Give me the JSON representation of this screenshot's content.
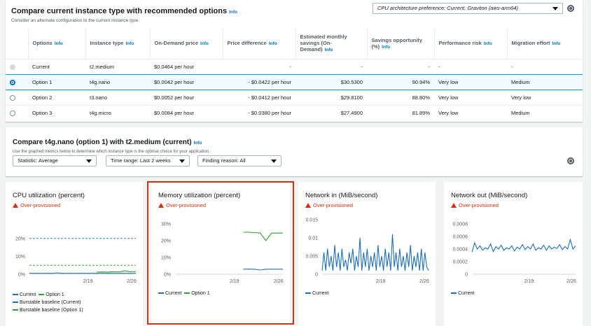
{
  "recommend": {
    "title": "Compare current instance type with recommended options",
    "title_info": "Info",
    "subtitle": "Consider an alternate configuration to the current instance type.",
    "cpu_pref": "CPU architecture preference: Current, Graviton (aws-arm64)",
    "columns": [
      {
        "label": "Options",
        "info": "Info"
      },
      {
        "label": "Instance type",
        "info": "Info"
      },
      {
        "label": "On-Demand price",
        "info": "Info"
      },
      {
        "label": "Price difference",
        "info": "Info"
      },
      {
        "label": "Estimated monthly savings (On-Demand)",
        "info": "Info"
      },
      {
        "label": "Savings opportunity (%)",
        "info": "Info"
      },
      {
        "label": "Performance risk",
        "info": "Info"
      },
      {
        "label": "Migration effort",
        "info": "Info"
      }
    ],
    "rows": [
      {
        "option": "Current",
        "type": "t2.medium",
        "price": "$0.0464 per hour",
        "diff": "-",
        "savings": "-",
        "pct": "-",
        "risk": "-",
        "effort": "-"
      },
      {
        "option": "Option 1",
        "type": "t4g.nano",
        "price": "$0.0042 per hour",
        "diff": "- $0.0422 per hour",
        "savings": "$30.5300",
        "pct": "90.94%",
        "risk": "Very low",
        "effort": "Medium"
      },
      {
        "option": "Option 2",
        "type": "t3.nano",
        "price": "$0.0052 per hour",
        "diff": "- $0.0412 per hour",
        "savings": "$29.8100",
        "pct": "88.80%",
        "risk": "Very low",
        "effort": "Very low"
      },
      {
        "option": "Option 3",
        "type": "t4g.micro",
        "price": "$0.0084 per hour",
        "diff": "- $0.0380 per hour",
        "savings": "$27.4900",
        "pct": "81.89%",
        "risk": "Very low",
        "effort": "Medium"
      }
    ]
  },
  "compare": {
    "title": "Compare t4g.nano (option 1) with t2.medium (current)",
    "title_info": "Info",
    "subtitle": "Use the graphed metrics below to determine which instance type is the optimal choice for your application.",
    "statistic": "Statistic: Average",
    "time_range": "Time range: Last 2 weeks",
    "finding": "Finding reason: All"
  },
  "colors": {
    "current": "#1f6fb5",
    "option1": "#2ca02c",
    "warn": "#d13212"
  },
  "chart_data": [
    {
      "type": "line",
      "title": "CPU utilization (percent)",
      "status": "Over-provisioned",
      "x_ticks": [
        "2/19",
        "2/26"
      ],
      "y_ticks": [
        "0%",
        "10%",
        "20%"
      ],
      "ylim": [
        0,
        25
      ],
      "series": [
        {
          "name": "Current",
          "values": [
            0.5,
            0.6,
            0.5,
            0.6,
            0.5,
            0.7,
            0.5,
            0.6,
            0.5,
            0.6,
            0.5,
            0.6,
            0.5,
            0.6,
            0.5,
            0.6,
            0.5,
            0.6,
            0.5,
            0.6
          ]
        },
        {
          "name": "Option 1",
          "values": [
            null,
            null,
            null,
            null,
            null,
            null,
            null,
            null,
            null,
            null,
            null,
            null,
            1.2,
            1.3,
            1.2,
            1.4,
            1.3,
            1.9,
            1.4,
            1.5
          ]
        }
      ],
      "baselines": [
        {
          "name": "Burstable baseline (Current)",
          "value": 20
        },
        {
          "name": "Burstable baseline (Option 1)",
          "value": 5
        }
      ]
    },
    {
      "type": "line",
      "title": "Memory utilization (percent)",
      "status": "Over-provisioned",
      "x_ticks": [
        "2/19",
        "2/26"
      ],
      "y_ticks": [
        "0%",
        "10%",
        "20%",
        "30%"
      ],
      "ylim": [
        0,
        30
      ],
      "series": [
        {
          "name": "Current",
          "values": [
            null,
            null,
            null,
            null,
            null,
            null,
            null,
            null,
            null,
            null,
            null,
            null,
            3,
            3.1,
            3,
            2.5,
            3,
            3,
            3,
            3
          ]
        },
        {
          "name": "Option 1",
          "values": [
            null,
            null,
            null,
            null,
            null,
            null,
            null,
            null,
            null,
            null,
            null,
            null,
            25,
            25,
            24.8,
            24.5,
            20,
            24.5,
            24.5,
            24.5
          ]
        }
      ]
    },
    {
      "type": "line",
      "title": "Network in (MiB/second)",
      "status": "Over-provisioned",
      "x_ticks": [
        "2/19",
        "2/26"
      ],
      "y_ticks": [
        "0",
        "0.005",
        "0.01",
        "0.015"
      ],
      "ylim": [
        0,
        0.015
      ],
      "series": [
        {
          "name": "Current",
          "values": [
            0.001,
            0.006,
            0.001,
            0.007,
            0.002,
            0.005,
            0.001,
            0.008,
            0.002,
            0.006,
            0.001,
            0.007,
            0.002,
            0.004,
            0.001,
            0.006,
            0.003,
            0.007,
            0.001,
            0.005,
            0.002,
            0.01,
            0.001,
            0.006,
            0.002,
            0.007,
            0.001,
            0.005,
            0.002,
            0.006,
            0.001,
            0.008,
            0.002,
            0.005,
            0.001,
            0.007,
            0.002,
            0.006,
            0.001,
            0.011,
            0.002,
            0.006,
            0.001,
            0.007,
            0.002,
            0.005,
            0.001,
            0.006,
            0.002,
            0.008,
            0.001,
            0.005,
            0.002,
            0.006,
            0.001,
            0.007,
            0.001,
            0.006,
            0.002,
            0.001
          ]
        }
      ]
    },
    {
      "type": "line",
      "title": "Network out (MiB/second)",
      "status": "Over-provisioned",
      "x_ticks": [
        "2/19",
        "2/26"
      ],
      "y_ticks": [
        "0",
        "0.0002",
        "0.0004",
        "0.0006",
        "0.0008"
      ],
      "ylim": [
        0,
        0.0008
      ],
      "series": [
        {
          "name": "Current",
          "values": [
            0.00035,
            0.0005,
            0.0004,
            0.00045,
            0.00038,
            0.00042,
            0.0004,
            0.00048,
            0.00036,
            0.00044,
            0.0004,
            0.00046,
            0.00038,
            0.00042,
            0.0004,
            0.00045,
            0.00037,
            0.00043,
            0.0004,
            0.00047,
            0.00039,
            0.00044,
            0.0004,
            0.00048,
            0.00038,
            0.00042,
            0.0004,
            0.00046,
            0.00038,
            0.00045,
            0.0004,
            0.00043,
            0.00041,
            0.00047,
            0.00039,
            0.00044,
            0.0004,
            0.00055,
            0.0004,
            0.00045
          ]
        }
      ]
    }
  ]
}
